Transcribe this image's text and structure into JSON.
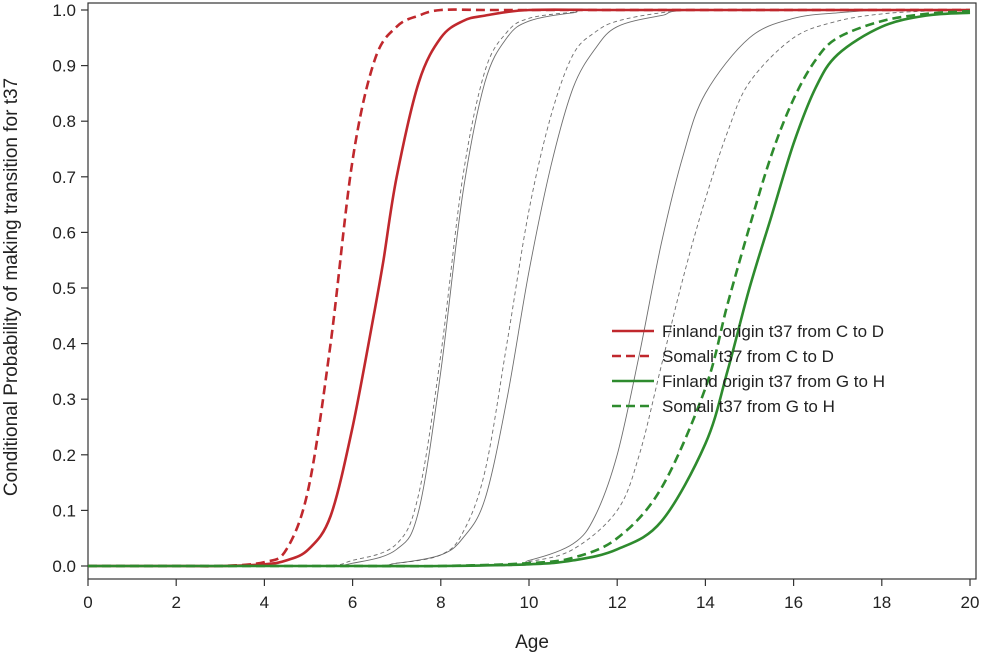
{
  "chart_data": {
    "type": "line",
    "title": "",
    "xlabel": "Age",
    "ylabel": "Conditional Probability of making transition for t37",
    "xlim": [
      0,
      20
    ],
    "ylim": [
      0,
      1
    ],
    "xticks": [
      "0",
      "2",
      "4",
      "6",
      "8",
      "10",
      "12",
      "14",
      "16",
      "18",
      "20"
    ],
    "yticks": [
      "0.0",
      "0.1",
      "0.2",
      "0.3",
      "0.4",
      "0.5",
      "0.6",
      "0.7",
      "0.8",
      "0.9",
      "1.0"
    ],
    "grid": false,
    "legend_position": "right",
    "series": [
      {
        "name": "Finland origin t37 from C to D",
        "color": "#c0282d",
        "style": "solid",
        "emphasis": true,
        "x": [
          0,
          2,
          3,
          4,
          4.5,
          5,
          5.5,
          6,
          6.5,
          6.7,
          7,
          7.5,
          8,
          8.5,
          9,
          10,
          12,
          16,
          20
        ],
        "y": [
          0.0,
          0.0,
          0.0,
          0.003,
          0.01,
          0.03,
          0.09,
          0.25,
          0.46,
          0.55,
          0.7,
          0.87,
          0.95,
          0.98,
          0.99,
          1.0,
          1.0,
          1.0,
          1.0
        ]
      },
      {
        "name": "Somali t37 from C to D",
        "color": "#c0282d",
        "style": "dashed",
        "emphasis": true,
        "x": [
          0,
          2,
          3,
          4,
          4.5,
          5,
          5.5,
          6,
          6.5,
          7,
          7.5,
          8,
          9,
          10,
          12,
          16,
          20
        ],
        "y": [
          0.0,
          0.0,
          0.0,
          0.007,
          0.03,
          0.14,
          0.4,
          0.73,
          0.91,
          0.97,
          0.99,
          1.0,
          1.0,
          1.0,
          1.0,
          1.0,
          1.0
        ]
      },
      {
        "name": "Finland origin t37 from G to H",
        "color": "#2e8b2e",
        "style": "solid",
        "emphasis": true,
        "x": [
          0,
          6,
          8,
          10,
          11,
          12,
          13,
          14,
          14.5,
          15,
          15.5,
          16,
          16.5,
          17,
          18,
          19,
          20
        ],
        "y": [
          0.0,
          0.0,
          0.0,
          0.003,
          0.01,
          0.03,
          0.08,
          0.22,
          0.35,
          0.5,
          0.63,
          0.76,
          0.86,
          0.92,
          0.97,
          0.99,
          0.995
        ]
      },
      {
        "name": "Somali t37 from G to H",
        "color": "#2e8b2e",
        "style": "dashed",
        "emphasis": true,
        "x": [
          0,
          6,
          8,
          10,
          11,
          12,
          13,
          14,
          14.5,
          15,
          15.5,
          16,
          16.5,
          17,
          18,
          19,
          20
        ],
        "y": [
          0.0,
          0.0,
          0.0,
          0.005,
          0.015,
          0.05,
          0.14,
          0.32,
          0.47,
          0.61,
          0.74,
          0.84,
          0.91,
          0.95,
          0.98,
          0.993,
          0.998
        ]
      },
      {
        "color": "#555555",
        "style": "solid",
        "emphasis": false,
        "x": [
          0,
          5,
          6,
          7,
          7.5,
          8,
          8.5,
          9,
          9.5,
          10,
          11,
          12,
          20
        ],
        "y": [
          0.0,
          0.0,
          0.005,
          0.03,
          0.1,
          0.35,
          0.67,
          0.87,
          0.95,
          0.98,
          0.995,
          1.0,
          1.0
        ]
      },
      {
        "color": "#555555",
        "style": "dashed",
        "emphasis": false,
        "x": [
          0,
          5,
          6,
          7,
          7.5,
          8,
          8.5,
          9,
          9.5,
          10,
          11,
          12,
          20
        ],
        "y": [
          0.0,
          0.0,
          0.01,
          0.04,
          0.13,
          0.38,
          0.7,
          0.89,
          0.96,
          0.985,
          0.996,
          1.0,
          1.0
        ]
      },
      {
        "color": "#555555",
        "style": "solid",
        "emphasis": false,
        "x": [
          0,
          6,
          7,
          8,
          8.5,
          9,
          9.5,
          10,
          10.5,
          11,
          11.5,
          12,
          13,
          14,
          20
        ],
        "y": [
          0.0,
          0.0,
          0.005,
          0.02,
          0.05,
          0.12,
          0.3,
          0.53,
          0.72,
          0.86,
          0.93,
          0.97,
          0.99,
          1.0,
          1.0
        ]
      },
      {
        "color": "#555555",
        "style": "dashed",
        "emphasis": false,
        "x": [
          0,
          6,
          7,
          8,
          8.5,
          9,
          9.5,
          10,
          10.5,
          11,
          11.5,
          12,
          13,
          14,
          20
        ],
        "y": [
          0.0,
          0.0,
          0.005,
          0.02,
          0.06,
          0.17,
          0.4,
          0.64,
          0.81,
          0.92,
          0.96,
          0.98,
          0.995,
          1.0,
          1.0
        ]
      },
      {
        "color": "#555555",
        "style": "solid",
        "emphasis": false,
        "x": [
          0,
          9,
          10,
          11,
          11.5,
          12,
          12.5,
          13,
          13.5,
          14,
          15,
          16,
          17,
          18,
          20
        ],
        "y": [
          0.0,
          0.0,
          0.01,
          0.04,
          0.09,
          0.2,
          0.38,
          0.58,
          0.74,
          0.85,
          0.95,
          0.985,
          0.995,
          1.0,
          1.0
        ]
      },
      {
        "color": "#555555",
        "style": "dashed",
        "emphasis": false,
        "x": [
          0,
          9,
          10,
          11,
          12,
          12.5,
          13,
          13.5,
          14,
          14.5,
          15,
          16,
          17,
          18,
          19,
          20
        ],
        "y": [
          0.0,
          0.0,
          0.008,
          0.03,
          0.1,
          0.2,
          0.36,
          0.52,
          0.66,
          0.78,
          0.87,
          0.95,
          0.98,
          0.993,
          0.998,
          1.0
        ]
      }
    ]
  }
}
